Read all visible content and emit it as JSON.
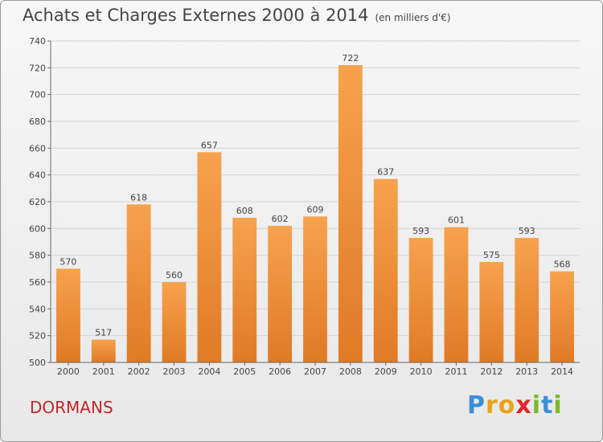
{
  "title": "Achats et Charges Externes 2000 à 2014",
  "subtitle": "(en milliers d'€)",
  "commune": "DORMANS",
  "logo": {
    "text": "Proxiti"
  },
  "colors": {
    "bar_top": "#f7a24e",
    "bar_bottom": "#e07a25",
    "title": "#444444",
    "commune": "#c0262c"
  },
  "chart_data": {
    "type": "bar",
    "title": "Achats et Charges Externes 2000 à 2014",
    "subtitle": "(en milliers d'€)",
    "xlabel": "",
    "ylabel": "",
    "ylim": [
      500,
      740
    ],
    "yticks": [
      500,
      520,
      540,
      560,
      580,
      600,
      620,
      640,
      660,
      680,
      700,
      720,
      740
    ],
    "grid": true,
    "categories": [
      "2000",
      "2001",
      "2002",
      "2003",
      "2004",
      "2005",
      "2006",
      "2007",
      "2008",
      "2009",
      "2010",
      "2011",
      "2012",
      "2013",
      "2014"
    ],
    "values": [
      570,
      517,
      618,
      560,
      657,
      608,
      602,
      609,
      722,
      637,
      593,
      601,
      575,
      593,
      568
    ]
  }
}
